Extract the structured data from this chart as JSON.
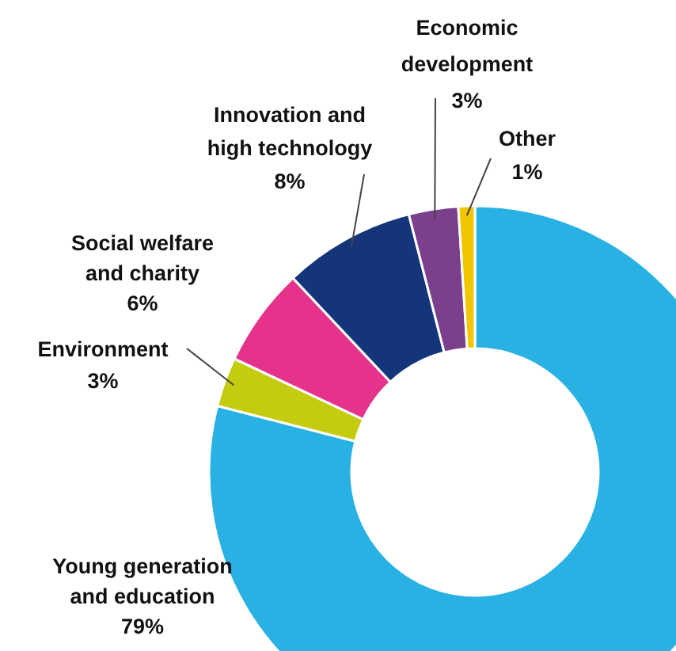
{
  "chart_data": {
    "type": "donut",
    "categories": [
      "Young generation and education",
      "Environment",
      "Social welfare and charity",
      "Innovation and high technology",
      "Economic development",
      "Other"
    ],
    "values": [
      79,
      3,
      6,
      8,
      3,
      1
    ],
    "value_labels": [
      "79%",
      "3%",
      "6%",
      "8%",
      "3%",
      "1%"
    ],
    "colors": [
      "#29b1e3",
      "#c4cc0f",
      "#e5338c",
      "#15357a",
      "#7b3f8c",
      "#f2c500"
    ]
  }
}
